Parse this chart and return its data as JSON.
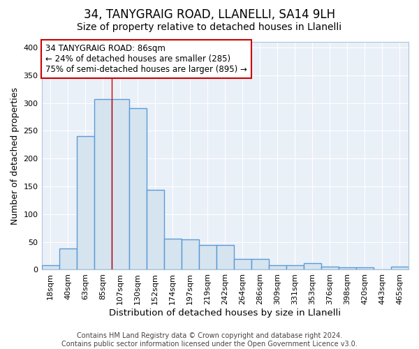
{
  "title1": "34, TANYGRAIG ROAD, LLANELLI, SA14 9LH",
  "title2": "Size of property relative to detached houses in Llanelli",
  "xlabel": "Distribution of detached houses by size in Llanelli",
  "ylabel": "Number of detached properties",
  "bin_labels": [
    "18sqm",
    "40sqm",
    "63sqm",
    "85sqm",
    "107sqm",
    "130sqm",
    "152sqm",
    "174sqm",
    "197sqm",
    "219sqm",
    "242sqm",
    "264sqm",
    "286sqm",
    "309sqm",
    "331sqm",
    "353sqm",
    "376sqm",
    "398sqm",
    "420sqm",
    "443sqm",
    "465sqm"
  ],
  "bar_values": [
    8,
    38,
    241,
    307,
    307,
    291,
    144,
    56,
    55,
    45,
    45,
    20,
    20,
    8,
    8,
    12,
    5,
    4,
    4,
    1,
    5
  ],
  "bar_color": "#d6e4f0",
  "bar_edge_color": "#5b9bd5",
  "bar_edge_width": 1.0,
  "vline_x_index": 3.5,
  "vline_color": "#cc0000",
  "annotation_text": "34 TANYGRAIG ROAD: 86sqm\n← 24% of detached houses are smaller (285)\n75% of semi-detached houses are larger (895) →",
  "annotation_box_color": "#ffffff",
  "annotation_box_edge": "#cc0000",
  "ylim": [
    0,
    410
  ],
  "yticks": [
    0,
    50,
    100,
    150,
    200,
    250,
    300,
    350,
    400
  ],
  "footer_text": "Contains HM Land Registry data © Crown copyright and database right 2024.\nContains public sector information licensed under the Open Government Licence v3.0.",
  "bg_color": "#ffffff",
  "plot_bg_color": "#eaf0f8",
  "grid_color": "#ffffff",
  "title1_fontsize": 12,
  "title2_fontsize": 10,
  "xlabel_fontsize": 9.5,
  "ylabel_fontsize": 9,
  "tick_fontsize": 8,
  "footer_fontsize": 7,
  "annotation_fontsize": 8.5
}
